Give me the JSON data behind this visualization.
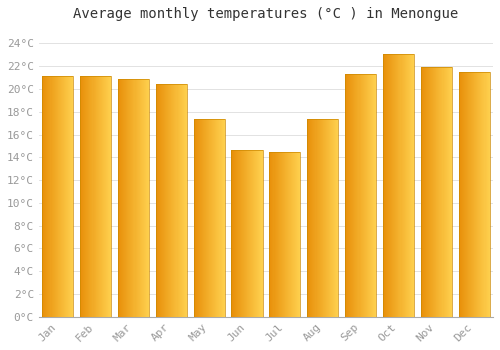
{
  "months": [
    "Jan",
    "Feb",
    "Mar",
    "Apr",
    "May",
    "Jun",
    "Jul",
    "Aug",
    "Sep",
    "Oct",
    "Nov",
    "Dec"
  ],
  "temperatures": [
    21.1,
    21.1,
    20.9,
    20.4,
    17.4,
    14.6,
    14.5,
    17.4,
    21.3,
    23.1,
    21.9,
    21.5
  ],
  "bar_color_left": "#E8900A",
  "bar_color_right": "#FFD050",
  "background_color": "#FFFFFF",
  "grid_color": "#DDDDDD",
  "title": "Average monthly temperatures (°C ) in Menongue",
  "title_fontsize": 10,
  "ytick_labels": [
    "0°C",
    "2°C",
    "4°C",
    "6°C",
    "8°C",
    "10°C",
    "12°C",
    "14°C",
    "16°C",
    "18°C",
    "20°C",
    "22°C",
    "24°C"
  ],
  "ytick_values": [
    0,
    2,
    4,
    6,
    8,
    10,
    12,
    14,
    16,
    18,
    20,
    22,
    24
  ],
  "ylim": [
    0,
    25.5
  ],
  "tick_color": "#999999",
  "tick_fontsize": 8,
  "bar_width": 0.82
}
